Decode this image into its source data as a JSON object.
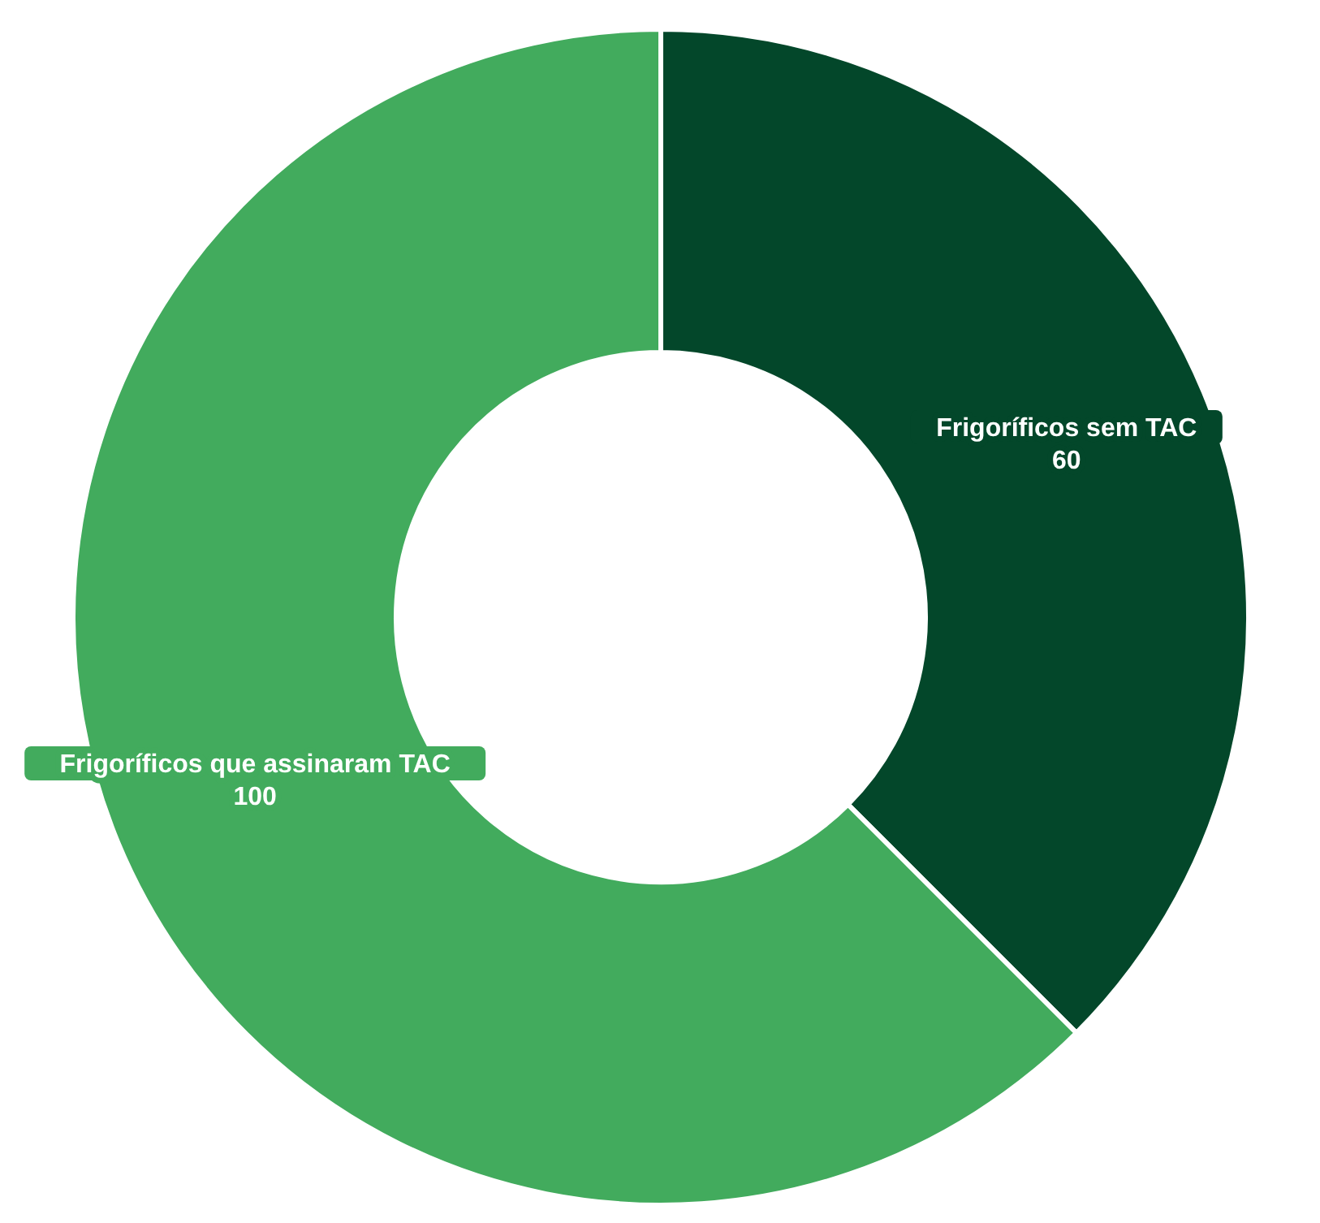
{
  "chart_data": {
    "type": "donut",
    "categories": [
      "Frigoríficos sem TAC",
      "Frigoríficos que assinaram TAC"
    ],
    "values": [
      60,
      100
    ],
    "colors": [
      "#03472a",
      "#42ab5d"
    ],
    "data_labels": true
  }
}
